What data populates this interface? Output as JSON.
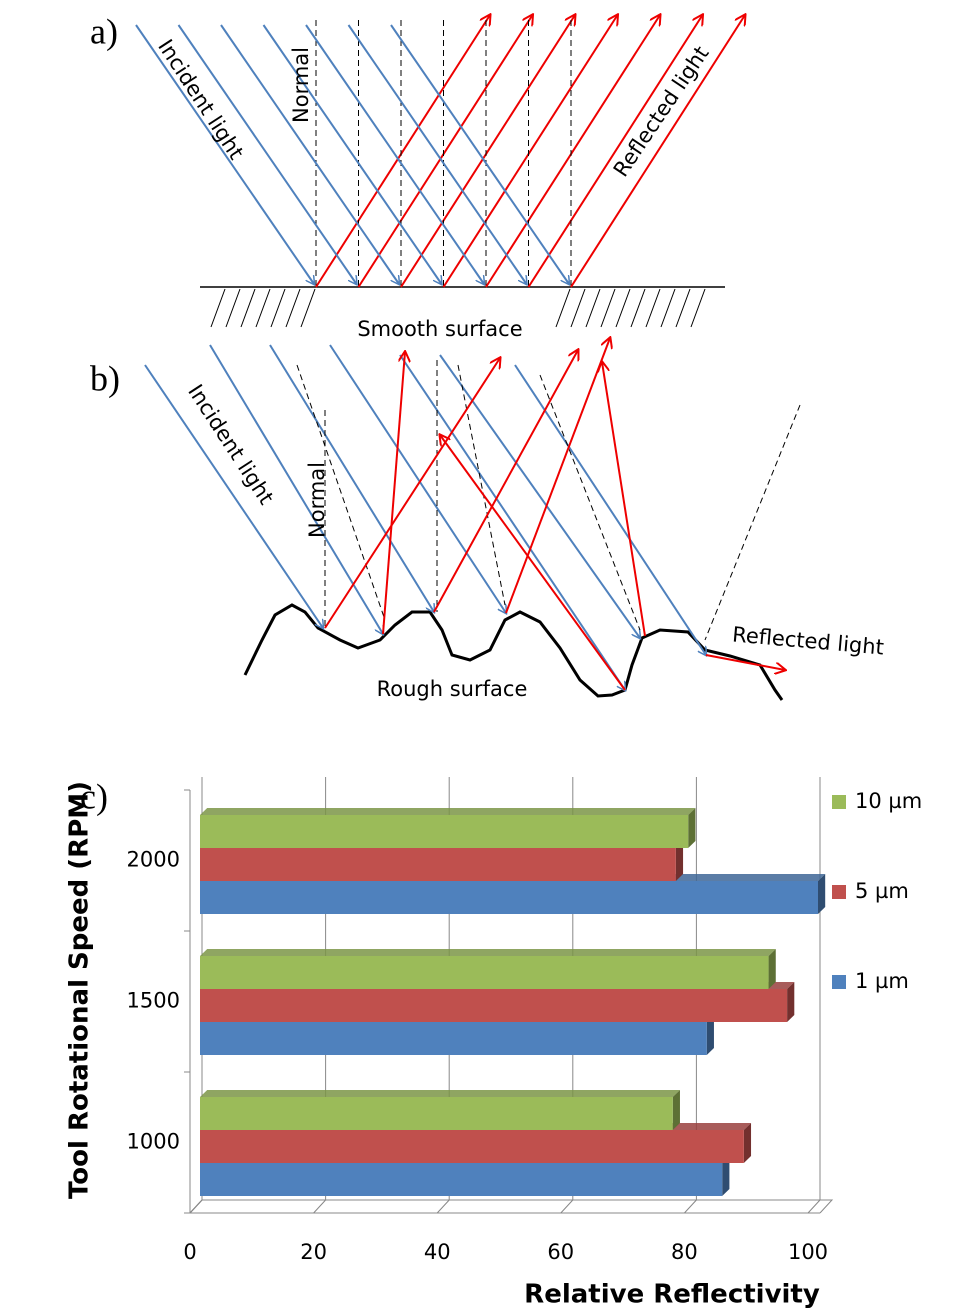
{
  "panels": {
    "a": {
      "label": "a)",
      "incident": "Incident light",
      "normal": "Normal",
      "reflected": "Reflected light",
      "surface": "Smooth surface"
    },
    "b": {
      "label": "b)",
      "incident": "Incident light",
      "normal": "Normal",
      "reflected": "Reflected light",
      "surface": "Rough surface"
    },
    "c": {
      "label": "c)"
    }
  },
  "chart_data": {
    "type": "bar",
    "orientation": "horizontal",
    "x_label": "Relative Reflectivity",
    "y_label": "Tool Rotational Speed (RPM)",
    "categories": [
      "1000",
      "1500",
      "2000"
    ],
    "series": [
      {
        "name": "1 µm",
        "color": "#4f81bd",
        "values": [
          84.5,
          82,
          100
        ]
      },
      {
        "name": "5 µm",
        "color": "#c0504d",
        "values": [
          88,
          95,
          77
        ]
      },
      {
        "name": "10 µm",
        "color": "#9bbb59",
        "values": [
          76.5,
          92,
          79
        ]
      }
    ],
    "xlim": [
      0,
      100
    ],
    "xticks": [
      0,
      20,
      40,
      60,
      80,
      100
    ],
    "grid": true,
    "legend": "right"
  }
}
